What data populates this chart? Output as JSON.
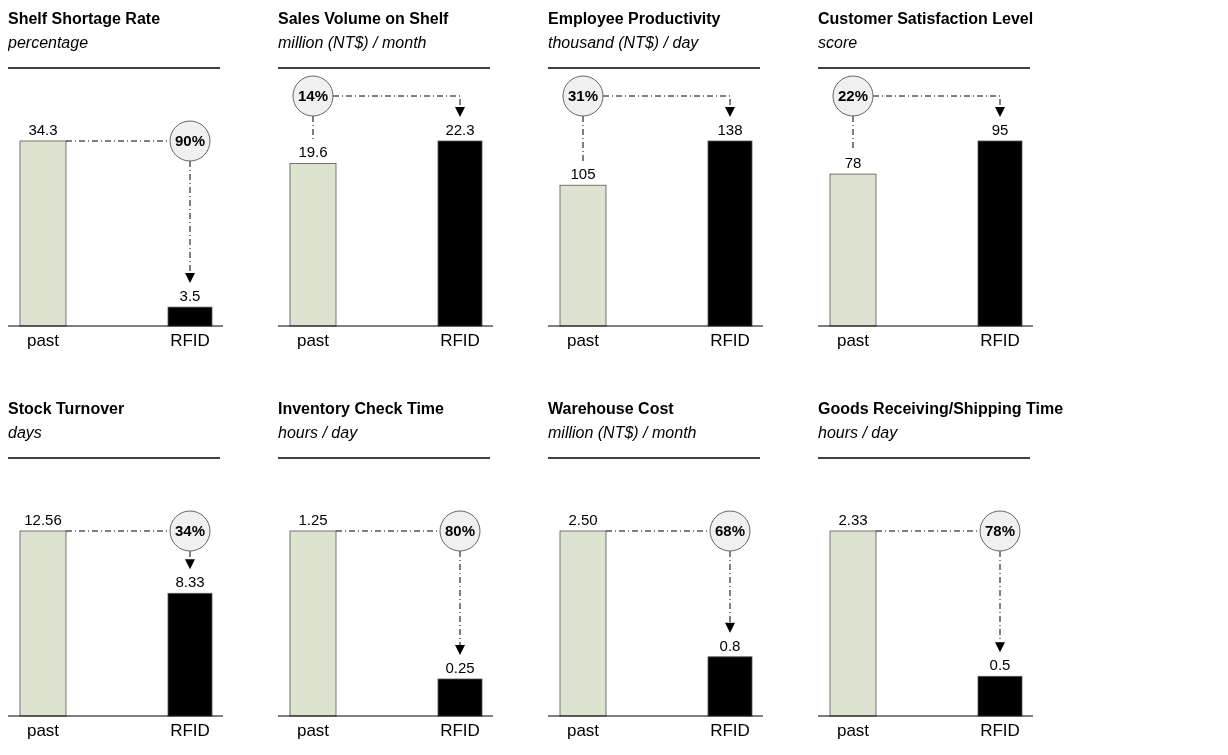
{
  "chart_data": [
    {
      "type": "bar",
      "title": "Shelf Shortage Rate",
      "subtitle": "percentage",
      "categories": [
        "past",
        "RFID"
      ],
      "values": [
        34.3,
        3.5
      ],
      "value_labels": [
        "34.3",
        "3.5"
      ],
      "colors": [
        "#dde3d0",
        "#000000"
      ],
      "annotations": [
        "90%"
      ]
    },
    {
      "type": "bar",
      "title": "Sales Volume on Shelf",
      "subtitle": "million (NT$) / month",
      "categories": [
        "past",
        "RFID"
      ],
      "values": [
        19.6,
        22.3
      ],
      "value_labels": [
        "19.6",
        "22.3"
      ],
      "colors": [
        "#dde3d0",
        "#000000"
      ],
      "annotations": [
        "14%"
      ]
    },
    {
      "type": "bar",
      "title": "Employee Productivity",
      "subtitle": "thousand (NT$) / day",
      "categories": [
        "past",
        "RFID"
      ],
      "values": [
        105,
        138
      ],
      "value_labels": [
        "105",
        "138"
      ],
      "colors": [
        "#dde3d0",
        "#000000"
      ],
      "annotations": [
        "31%"
      ]
    },
    {
      "type": "bar",
      "title": "Customer Satisfaction Level",
      "subtitle": "score",
      "categories": [
        "past",
        "RFID"
      ],
      "values": [
        78,
        95
      ],
      "value_labels": [
        "78",
        "95"
      ],
      "colors": [
        "#dde3d0",
        "#000000"
      ],
      "annotations": [
        "22%"
      ]
    },
    {
      "type": "bar",
      "title": "Stock Turnover",
      "subtitle": "days",
      "categories": [
        "past",
        "RFID"
      ],
      "values": [
        12.56,
        8.33
      ],
      "value_labels": [
        "12.56",
        "8.33"
      ],
      "colors": [
        "#dde3d0",
        "#000000"
      ],
      "annotations": [
        "34%"
      ]
    },
    {
      "type": "bar",
      "title": "Inventory Check Time",
      "subtitle": "hours / day",
      "categories": [
        "past",
        "RFID"
      ],
      "values": [
        1.25,
        0.25
      ],
      "value_labels": [
        "1.25",
        "0.25"
      ],
      "colors": [
        "#dde3d0",
        "#000000"
      ],
      "annotations": [
        "80%"
      ]
    },
    {
      "type": "bar",
      "title": "Warehouse Cost",
      "subtitle": "million (NT$) / month",
      "categories": [
        "past",
        "RFID"
      ],
      "values": [
        2.5,
        0.8
      ],
      "value_labels": [
        "2.50",
        "0.8"
      ],
      "colors": [
        "#dde3d0",
        "#000000"
      ],
      "annotations": [
        "68%"
      ]
    },
    {
      "type": "bar",
      "title": "Goods Receiving/Shipping Time",
      "subtitle": "hours / day",
      "categories": [
        "past",
        "RFID"
      ],
      "values": [
        2.33,
        0.5
      ],
      "value_labels": [
        "2.33",
        "0.5"
      ],
      "colors": [
        "#dde3d0",
        "#000000"
      ],
      "annotations": [
        "78%"
      ]
    }
  ]
}
